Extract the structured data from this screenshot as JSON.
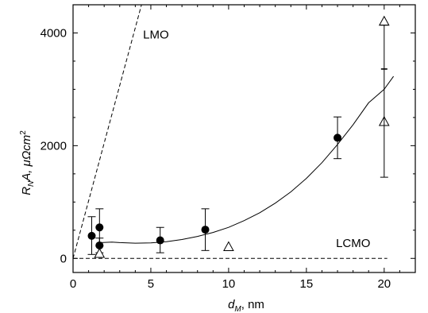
{
  "chart_data": {
    "type": "scatter",
    "title": "",
    "xlabel": {
      "main": "d",
      "sub": "M",
      "rest": ", nm"
    },
    "ylabel": {
      "r": "R",
      "sub": "N",
      "a": "A, μΩcm",
      "sup": "2"
    },
    "xlim": [
      0,
      22
    ],
    "ylim": [
      -250,
      4500
    ],
    "xticks": [
      0,
      5,
      10,
      15,
      20
    ],
    "yticks": [
      0,
      2000,
      4000
    ],
    "grid": false,
    "series": [
      {
        "marker": "filled-circle",
        "points": [
          {
            "x": 1.2,
            "y": 400,
            "err_low": 330,
            "err_high": 340
          },
          {
            "x": 1.7,
            "y": 550,
            "err_low": 330,
            "err_high": 330
          },
          {
            "x": 1.7,
            "y": 230,
            "err_low": 130,
            "err_high": 130
          },
          {
            "x": 5.6,
            "y": 320,
            "err_low": 220,
            "err_high": 230
          },
          {
            "x": 8.5,
            "y": 510,
            "err_low": 370,
            "err_high": 370
          },
          {
            "x": 17.0,
            "y": 2140,
            "err_low": 370,
            "err_high": 370
          }
        ]
      },
      {
        "marker": "open-triangle",
        "points": [
          {
            "x": 1.7,
            "y": 80
          },
          {
            "x": 10.0,
            "y": 200
          },
          {
            "x": 20.0,
            "y": 4200
          },
          {
            "x": 20.0,
            "y": 2420
          }
        ]
      },
      {
        "marker": "error-bar",
        "points": [
          {
            "x": 20.0,
            "y": 3360,
            "err_low": 1920,
            "err_high": 780
          }
        ]
      }
    ],
    "lines": [
      {
        "name": "LMO",
        "style": "dashed",
        "points": [
          [
            0.0,
            0
          ],
          [
            4.4,
            4500
          ]
        ]
      },
      {
        "name": "LCMO",
        "style": "dashed",
        "points": [
          [
            0.0,
            0
          ],
          [
            20.2,
            0
          ]
        ]
      },
      {
        "style": "solid",
        "points": [
          [
            1.7,
            280
          ],
          [
            2.5,
            290
          ],
          [
            3.0,
            280
          ],
          [
            4.0,
            270
          ],
          [
            5.0,
            275
          ],
          [
            6.0,
            295
          ],
          [
            7.0,
            335
          ],
          [
            8.0,
            390
          ],
          [
            9.0,
            460
          ],
          [
            10.0,
            550
          ],
          [
            11.0,
            670
          ],
          [
            12.0,
            810
          ],
          [
            13.0,
            980
          ],
          [
            14.0,
            1180
          ],
          [
            15.0,
            1420
          ],
          [
            16.0,
            1700
          ],
          [
            17.0,
            2020
          ],
          [
            18.0,
            2370
          ],
          [
            19.0,
            2760
          ],
          [
            20.0,
            3000
          ],
          [
            20.6,
            3230
          ]
        ]
      }
    ],
    "annotations": [
      {
        "text": "LMO",
        "x": 4.5,
        "y": 3900
      },
      {
        "text": "LCMO",
        "x": 16.9,
        "y": 200
      }
    ]
  }
}
